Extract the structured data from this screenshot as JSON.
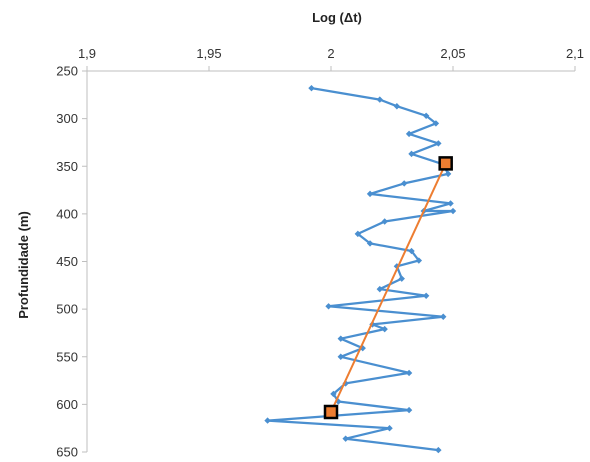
{
  "chart_data": {
    "type": "line",
    "title": "",
    "xlabel": "Log (Δt)",
    "ylabel": "Profundidade (m)",
    "xlim": [
      1.9,
      2.1
    ],
    "ylim": [
      250,
      650
    ],
    "y_inverted": true,
    "x_axis_position": "top",
    "x_ticks": [
      "1,9",
      "1,95",
      "2",
      "2,05",
      "2,1"
    ],
    "y_ticks": [
      "250",
      "300",
      "350",
      "400",
      "450",
      "500",
      "550",
      "600",
      "650"
    ],
    "grid": false,
    "legend": "none",
    "series": [
      {
        "color": "#4A8FD0",
        "marker": "diamond",
        "x": [
          1.992,
          2.02,
          2.027,
          2.039,
          2.043,
          2.032,
          2.044,
          2.033,
          2.046,
          2.048,
          2.03,
          2.016,
          2.049,
          2.038,
          2.05,
          2.022,
          2.011,
          2.016,
          2.033,
          2.036,
          2.027,
          2.029,
          2.02,
          2.039,
          1.999,
          2.046,
          2.017,
          2.022,
          2.004,
          2.013,
          2.004,
          2.032,
          2.006,
          2.001,
          2.003,
          2.032,
          1.974,
          2.024,
          2.006,
          2.044
        ],
        "y": [
          268,
          280,
          287,
          297,
          305,
          316,
          326,
          337,
          348,
          358,
          368,
          379,
          389,
          397,
          397,
          408,
          421,
          431,
          439,
          449,
          455,
          468,
          479,
          486,
          497,
          508,
          516,
          521,
          531,
          541,
          550,
          567,
          578,
          589,
          597,
          606,
          617,
          625,
          636,
          648
        ]
      },
      {
        "color": "#ED7D31",
        "marker": "square",
        "x": [
          2.047,
          2.0
        ],
        "y": [
          347,
          608
        ]
      }
    ]
  }
}
